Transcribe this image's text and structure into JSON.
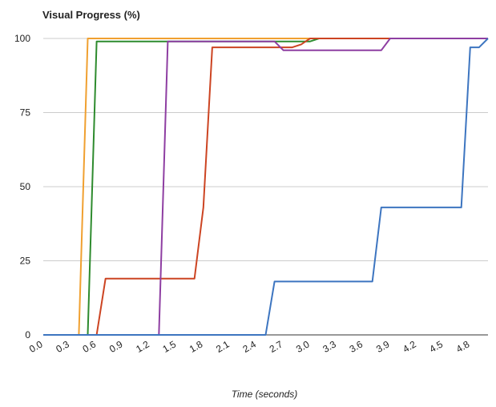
{
  "chart_data": {
    "type": "line",
    "title": "Visual Progress (%)",
    "xlabel": "Time (seconds)",
    "ylabel": "",
    "xlim": [
      0.0,
      5.0
    ],
    "ylim": [
      0,
      100
    ],
    "xticks": [
      "0.0",
      "0.3",
      "0.6",
      "0.9",
      "1.2",
      "1.5",
      "1.8",
      "2.1",
      "2.4",
      "2.7",
      "3.0",
      "3.3",
      "3.6",
      "3.9",
      "4.2",
      "4.5",
      "4.8"
    ],
    "yticks": [
      "0",
      "25",
      "50",
      "75",
      "100"
    ],
    "grid": true,
    "legend": "none",
    "series": [
      {
        "color": "#f0a030",
        "x": [
          0.0,
          0.4,
          0.5,
          3.0,
          5.0
        ],
        "y": [
          0,
          0,
          100,
          100,
          100
        ]
      },
      {
        "color": "#2e8b2e",
        "x": [
          0.0,
          0.5,
          0.6,
          3.0,
          3.1,
          5.0
        ],
        "y": [
          0,
          0,
          99,
          99,
          100,
          100
        ]
      },
      {
        "color": "#cc4422",
        "x": [
          0.0,
          0.6,
          0.7,
          1.7,
          1.8,
          1.9,
          2.8,
          2.9,
          3.0,
          5.0
        ],
        "y": [
          0,
          0,
          19,
          19,
          43,
          97,
          97,
          98,
          100,
          100
        ]
      },
      {
        "color": "#8e3ea2",
        "x": [
          0.0,
          1.3,
          1.4,
          2.6,
          2.7,
          3.8,
          3.9,
          5.0
        ],
        "y": [
          0,
          0,
          99,
          99,
          96,
          96,
          100,
          100
        ]
      },
      {
        "color": "#3d75c0",
        "x": [
          0.0,
          2.5,
          2.6,
          3.7,
          3.8,
          4.7,
          4.8,
          4.9,
          5.0
        ],
        "y": [
          0,
          0,
          18,
          18,
          43,
          43,
          97,
          97,
          100
        ]
      }
    ]
  }
}
